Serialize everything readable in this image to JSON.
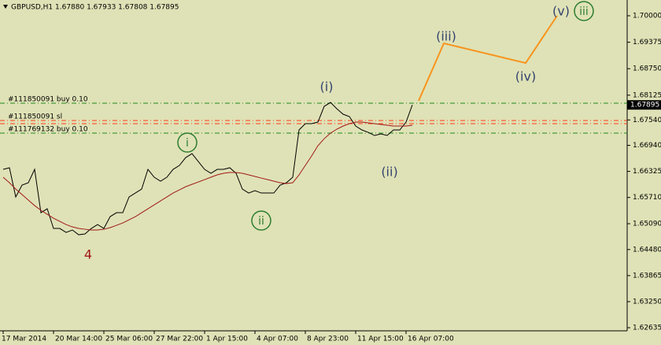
{
  "chart_data": {
    "type": "line",
    "title": "GBPUSD,H1  1.67880 1.67933 1.67808 1.67895",
    "current_price": 1.67895,
    "categories": [
      "17 Mar 2014",
      null,
      null,
      null,
      null,
      null,
      null,
      null,
      "20 Mar 14:00",
      null,
      null,
      null,
      null,
      null,
      null,
      null,
      "25 Mar 06:00",
      null,
      null,
      null,
      null,
      null,
      null,
      null,
      "27 Mar 22:00",
      null,
      null,
      null,
      null,
      null,
      null,
      null,
      "1 Apr 15:00",
      null,
      null,
      null,
      null,
      null,
      null,
      null,
      "4 Apr 07:00",
      null,
      null,
      null,
      null,
      null,
      null,
      null,
      "8 Apr 23:00",
      null,
      null,
      null,
      null,
      null,
      null,
      null,
      "11 Apr 15:00",
      null,
      null,
      null,
      null,
      null,
      null,
      null,
      "16 Apr 07:00",
      null,
      null,
      null,
      null,
      null,
      null,
      null,
      null,
      null,
      null,
      null,
      null,
      null,
      null,
      null,
      null,
      null,
      null,
      null,
      null,
      null,
      null,
      null,
      null,
      null,
      null,
      null,
      null,
      null,
      null,
      null,
      null,
      null,
      null,
      null
    ],
    "series": [
      {
        "color": "#000000",
        "values": [
          1.66373,
          1.66411,
          1.65722,
          1.66001,
          1.66057,
          1.66373,
          1.6535,
          1.65443,
          1.64978,
          1.64978,
          1.64885,
          1.64941,
          1.64829,
          1.64848,
          1.64978,
          1.65071,
          1.64978,
          1.65257,
          1.6535,
          1.6535,
          1.65722,
          1.65815,
          1.65908,
          1.66373,
          1.66187,
          1.66094,
          1.66187,
          1.66373,
          1.66466,
          1.66652,
          1.66745,
          1.66559,
          1.66373,
          1.6628,
          1.66373,
          1.66373,
          1.66411,
          1.6628,
          1.65908,
          1.65815,
          1.65871,
          1.65815,
          1.65815,
          1.65815,
          1.66001,
          1.66057,
          1.66187,
          1.67303,
          1.67452,
          1.67452,
          1.67489,
          1.67861,
          1.67954,
          1.67805,
          1.67675,
          1.67619,
          1.67396,
          1.67303,
          1.67247,
          1.67173,
          1.6721,
          1.67173,
          1.67303,
          1.67303,
          1.67489,
          1.67895,
          null,
          null,
          null,
          null,
          null,
          null,
          null,
          null,
          null,
          null,
          null,
          null,
          null,
          null,
          null,
          null,
          null,
          null,
          null,
          null,
          null,
          null,
          null,
          null,
          null,
          null,
          null,
          null,
          null,
          null,
          null,
          null,
          null,
          null
        ]
      },
      {
        "color": "#a01818",
        "values": [
          1.66187,
          1.66057,
          1.65908,
          1.65778,
          1.65648,
          1.65517,
          1.65406,
          1.65313,
          1.6522,
          1.65145,
          1.65071,
          1.65015,
          1.64978,
          1.64959,
          1.64941,
          1.64941,
          1.64959,
          1.64997,
          1.65052,
          1.65108,
          1.65183,
          1.65257,
          1.6535,
          1.65443,
          1.65536,
          1.65629,
          1.65722,
          1.65815,
          1.65889,
          1.65964,
          1.6602,
          1.66075,
          1.66131,
          1.66187,
          1.66243,
          1.6628,
          1.66299,
          1.66299,
          1.6628,
          1.66243,
          1.66206,
          1.66168,
          1.66131,
          1.66094,
          1.66057,
          1.66038,
          1.66057,
          1.66243,
          1.66466,
          1.66689,
          1.66931,
          1.67098,
          1.67229,
          1.67322,
          1.67396,
          1.67452,
          1.67489,
          1.67489,
          1.6747,
          1.67452,
          1.67433,
          1.67415,
          1.67396,
          1.67396,
          1.67396,
          1.67415,
          null,
          null,
          null,
          null,
          null,
          null,
          null,
          null,
          null,
          null,
          null,
          null,
          null,
          null,
          null,
          null,
          null,
          null,
          null,
          null,
          null,
          null,
          null,
          null,
          null,
          null,
          null,
          null,
          null,
          null,
          null,
          null,
          null,
          null
        ]
      },
      {
        "color": "#f7941d",
        "values": [
          null,
          null,
          null,
          null,
          null,
          null,
          null,
          null,
          null,
          null,
          null,
          null,
          null,
          null,
          null,
          null,
          null,
          null,
          null,
          null,
          null,
          null,
          null,
          null,
          null,
          null,
          null,
          null,
          null,
          null,
          null,
          null,
          null,
          null,
          null,
          null,
          null,
          null,
          null,
          null,
          null,
          null,
          null,
          null,
          null,
          null,
          null,
          null,
          null,
          null,
          null,
          null,
          null,
          null,
          null,
          null,
          null,
          null,
          null,
          null,
          null,
          null,
          null,
          null,
          null,
          null,
          1.67991,
          1.68331,
          1.6867,
          1.6901,
          1.69349,
          1.69313,
          1.69277,
          1.69242,
          1.69206,
          1.6917,
          1.69134,
          1.69099,
          1.69063,
          1.69027,
          1.68991,
          1.68955,
          1.6892,
          1.68884,
          1.69107,
          1.6933,
          1.69554,
          1.69777,
          1.7,
          null,
          null,
          null,
          null,
          null,
          null,
          null,
          null,
          null,
          null,
          null
        ]
      }
    ],
    "order_lines": [
      {
        "label": "#111850091 buy 0.10",
        "value": 1.67935,
        "color": "#1f8a1f"
      },
      {
        "label": "#111850091 sl",
        "value": 1.67526,
        "color": "#ff3b1a"
      },
      {
        "value": 1.67452,
        "color": "#ff3b1a"
      },
      {
        "label": "#111769132 buy 0.10",
        "value": 1.67229,
        "color": "#1f8a1f"
      }
    ],
    "annotations": [
      {
        "text": "4",
        "color": "#a01818",
        "circled": false
      },
      {
        "text": "i",
        "color": "#2e7d32",
        "circled": true
      },
      {
        "text": "ii",
        "color": "#2e7d32",
        "circled": true
      },
      {
        "text": "(i)",
        "color": "#34426e",
        "circled": false
      },
      {
        "text": "(ii)",
        "color": "#34426e",
        "circled": false
      },
      {
        "text": "(iii)",
        "color": "#34426e",
        "circled": false
      },
      {
        "text": "(iv)",
        "color": "#34426e",
        "circled": false
      },
      {
        "text": "(v)",
        "color": "#34426e",
        "circled": false
      },
      {
        "text": "iii",
        "color": "#2e7d32",
        "circled": true
      }
    ],
    "ylim": [
      1.62561,
      1.70372
    ],
    "yticks": [
      {
        "value": 1.7,
        "label": "1.70000"
      },
      1.69375,
      {
        "value": 1.6875,
        "label": "1.68750"
      },
      1.68125,
      {
        "value": 1.6754,
        "label": "1.67540"
      },
      {
        "value": 1.6694,
        "label": "1.66940"
      },
      1.66325,
      {
        "value": 1.6571,
        "label": "1.65710"
      },
      {
        "value": 1.6509,
        "label": "1.65090"
      },
      {
        "value": 1.6448,
        "label": "1.64480"
      },
      1.63865,
      {
        "value": 1.6325,
        "label": "1.63250"
      },
      1.62635
    ],
    "background": "#dfe2b6"
  }
}
